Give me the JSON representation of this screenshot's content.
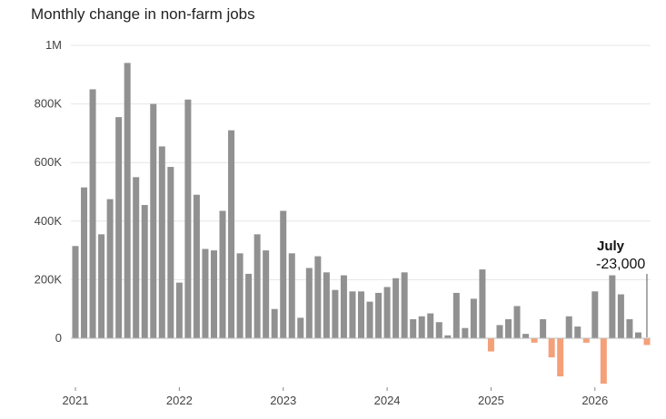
{
  "chart_data": {
    "type": "bar",
    "title": "Monthly change in non-farm jobs",
    "xlabel": "",
    "ylabel": "",
    "ylim": [
      -160000,
      1000000
    ],
    "y_ticks": [
      {
        "value": 0,
        "label": "0"
      },
      {
        "value": 200000,
        "label": "200K"
      },
      {
        "value": 400000,
        "label": "400K"
      },
      {
        "value": 600000,
        "label": "600K"
      },
      {
        "value": 800000,
        "label": "800K"
      },
      {
        "value": 1000000,
        "label": "1M"
      }
    ],
    "x_ticks": [
      "2021",
      "2022",
      "2023",
      "2024",
      "2025",
      "2026"
    ],
    "grid": true,
    "colors": {
      "positive": "#919191",
      "negative": "#f4a079",
      "grid": "#e6e6e6",
      "baseline": "#bbbbbb"
    },
    "start": "2021-01",
    "end": "2026-07",
    "values": [
      315000,
      515000,
      850000,
      355000,
      475000,
      755000,
      940000,
      550000,
      455000,
      800000,
      655000,
      585000,
      190000,
      815000,
      490000,
      305000,
      300000,
      435000,
      710000,
      290000,
      220000,
      355000,
      300000,
      100000,
      435000,
      290000,
      70000,
      240000,
      280000,
      225000,
      165000,
      215000,
      160000,
      160000,
      125000,
      155000,
      175000,
      205000,
      225000,
      65000,
      75000,
      85000,
      55000,
      10000,
      155000,
      35000,
      135000,
      235000,
      -45000,
      45000,
      65000,
      110000,
      15000,
      -15000,
      65000,
      -65000,
      -130000,
      75000,
      40000,
      -15000,
      160000,
      -155000,
      215000,
      150000,
      65000,
      20000,
      -23000
    ],
    "annotations": [
      {
        "month": "2026-07",
        "label": "July",
        "value_text": "-23,000"
      }
    ]
  }
}
